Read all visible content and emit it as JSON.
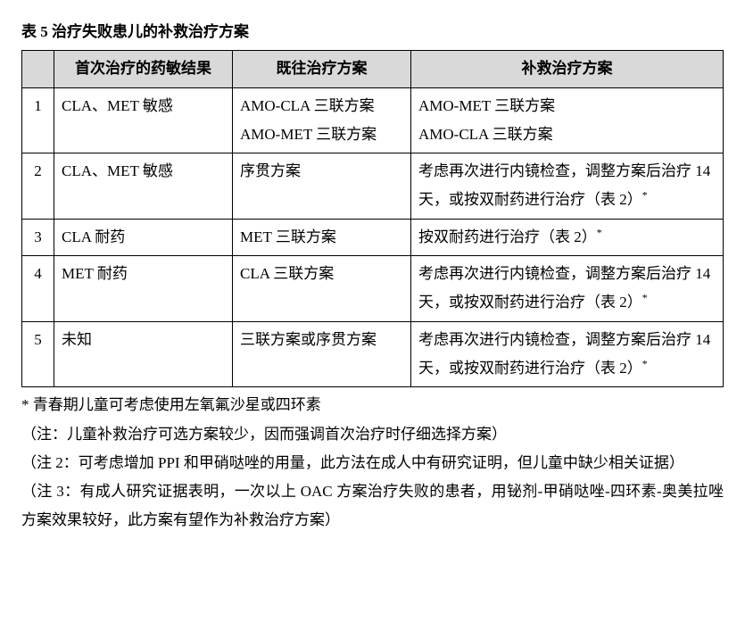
{
  "title": "表 5  治疗失败患儿的补救治疗方案",
  "table": {
    "header": {
      "col0": "",
      "col1": "首次治疗的药敏结果",
      "col2": "既往治疗方案",
      "col3": "补救治疗方案"
    },
    "rows": [
      {
        "idx": "1",
        "c1": "CLA、MET 敏感",
        "c2": "AMO-CLA 三联方案\nAMO-MET 三联方案",
        "c3": "AMO-MET 三联方案\nAMO-CLA 三联方案"
      },
      {
        "idx": "2",
        "c1": "CLA、MET 敏感",
        "c2": "序贯方案",
        "c3": "考虑再次进行内镜检查，调整方案后治疗 14 天，或按双耐药进行治疗（表 2）*"
      },
      {
        "idx": "3",
        "c1": "CLA 耐药",
        "c2": "MET 三联方案",
        "c3": "按双耐药进行治疗（表 2）*"
      },
      {
        "idx": "4",
        "c1": "MET 耐药",
        "c2": "CLA 三联方案",
        "c3": "考虑再次进行内镜检查，调整方案后治疗 14 天，或按双耐药进行治疗（表 2）*"
      },
      {
        "idx": "5",
        "c1": "未知",
        "c2": "三联方案或序贯方案",
        "c3": "考虑再次进行内镜检查，调整方案后治疗 14 天，或按双耐药进行治疗（表 2）*"
      }
    ]
  },
  "notes": {
    "n1": "*  青春期儿童可考虑使用左氧氟沙星或四环素",
    "n2": "（注：儿童补救治疗可选方案较少，因而强调首次治疗时仔细选择方案）",
    "n3": "（注 2：可考虑增加 PPI 和甲硝哒唑的用量，此方法在成人中有研究证明，但儿童中缺少相关证据）",
    "n4": "（注 3：有成人研究证据表明，一次以上 OAC 方案治疗失败的患者，用铋剂-甲硝哒唑-四环素-奥美拉唑方案效果较好，此方案有望作为补救治疗方案）"
  },
  "style": {
    "header_bg": "#d9d9d9",
    "border_color": "#000000",
    "font_size_pt": 12,
    "background": "#ffffff"
  }
}
